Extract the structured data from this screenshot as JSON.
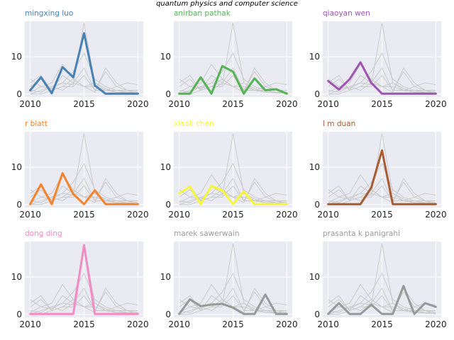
{
  "figure": {
    "suptitle": "quantum physics and computer science"
  },
  "chart_data": {
    "type": "line",
    "title": "quantum physics and computer science",
    "x": [
      2010,
      2011,
      2012,
      2013,
      2014,
      2015,
      2016,
      2017,
      2018,
      2019,
      2020
    ],
    "xlim": [
      2009.5,
      2020.5
    ],
    "ylim": [
      -0.8,
      19.5
    ],
    "xticks": [
      2010,
      2015,
      2020
    ],
    "yticks": [
      0,
      10
    ],
    "grid": true,
    "background_series_color": "#c8c8c8",
    "background_series": [
      [
        0.5,
        2,
        1.5,
        3,
        2.5,
        19,
        3,
        1.5,
        0.5,
        0.3,
        0.2
      ],
      [
        4,
        2,
        3,
        8,
        4,
        2,
        2,
        1,
        0.5,
        0.5,
        0.3
      ],
      [
        0,
        1,
        2,
        3,
        6,
        11,
        4,
        2,
        1,
        0.5,
        0.3
      ],
      [
        2,
        4,
        1,
        5,
        3,
        7,
        1,
        6,
        2,
        3,
        2.5
      ],
      [
        1,
        0.5,
        2,
        1,
        3,
        2,
        0.5,
        7,
        3,
        1,
        0.5
      ],
      [
        3,
        5,
        1,
        2,
        4,
        2,
        3,
        1,
        2,
        1,
        1
      ],
      [
        0,
        0,
        1,
        2,
        2,
        5,
        1,
        1,
        1,
        1,
        0
      ]
    ],
    "series": [
      {
        "name": "mingxing luo",
        "color": "#4682b4",
        "values": [
          1,
          4.5,
          0.2,
          7.2,
          4.5,
          16.3,
          2.3,
          0.1,
          0.1,
          0.1,
          0.1
        ]
      },
      {
        "name": "anirban pathak",
        "color": "#55b356",
        "values": [
          0.1,
          0.1,
          4.5,
          0.1,
          7.5,
          6,
          0.1,
          4.2,
          1,
          1.3,
          0.1
        ]
      },
      {
        "name": "qiaoyan wen",
        "color": "#9e55b2",
        "values": [
          3.5,
          1.2,
          4,
          8.5,
          3,
          0.1,
          0.1,
          0.1,
          0.1,
          0.1,
          0.1
        ]
      },
      {
        "name": "r blatt",
        "color": "#f5832a",
        "values": [
          0.1,
          5.4,
          0.1,
          8.4,
          2.8,
          0.1,
          3.8,
          0.1,
          0.1,
          0.1,
          0.1
        ]
      },
      {
        "name": "xiaoli chen",
        "color": "#f7f73a",
        "values": [
          3,
          4.8,
          0.1,
          5,
          3.8,
          0.1,
          3.5,
          0.1,
          0.1,
          0.1,
          0.1
        ]
      },
      {
        "name": "l m duan",
        "color": "#a65c33",
        "values": [
          0.1,
          0.1,
          0.1,
          0.1,
          4.5,
          14.5,
          0.1,
          0.1,
          0.1,
          0.1,
          0.1
        ]
      },
      {
        "name": "dong ding",
        "color": "#f18cc4",
        "values": [
          0.1,
          0.1,
          0.1,
          0.1,
          0.1,
          18.5,
          0.1,
          0.1,
          0.1,
          0.1,
          0.1
        ]
      },
      {
        "name": "marek sawerwain",
        "color": "#999999",
        "values": [
          0.1,
          4,
          2.2,
          2.6,
          2.8,
          1.8,
          0.1,
          0.1,
          5.3,
          0.1,
          0.1
        ]
      },
      {
        "name": "prasanta k panigrahi",
        "color": "#999999",
        "values": [
          0.1,
          3,
          0.1,
          0.1,
          2.6,
          0.1,
          0.1,
          7.6,
          0.1,
          3,
          2
        ]
      }
    ]
  }
}
